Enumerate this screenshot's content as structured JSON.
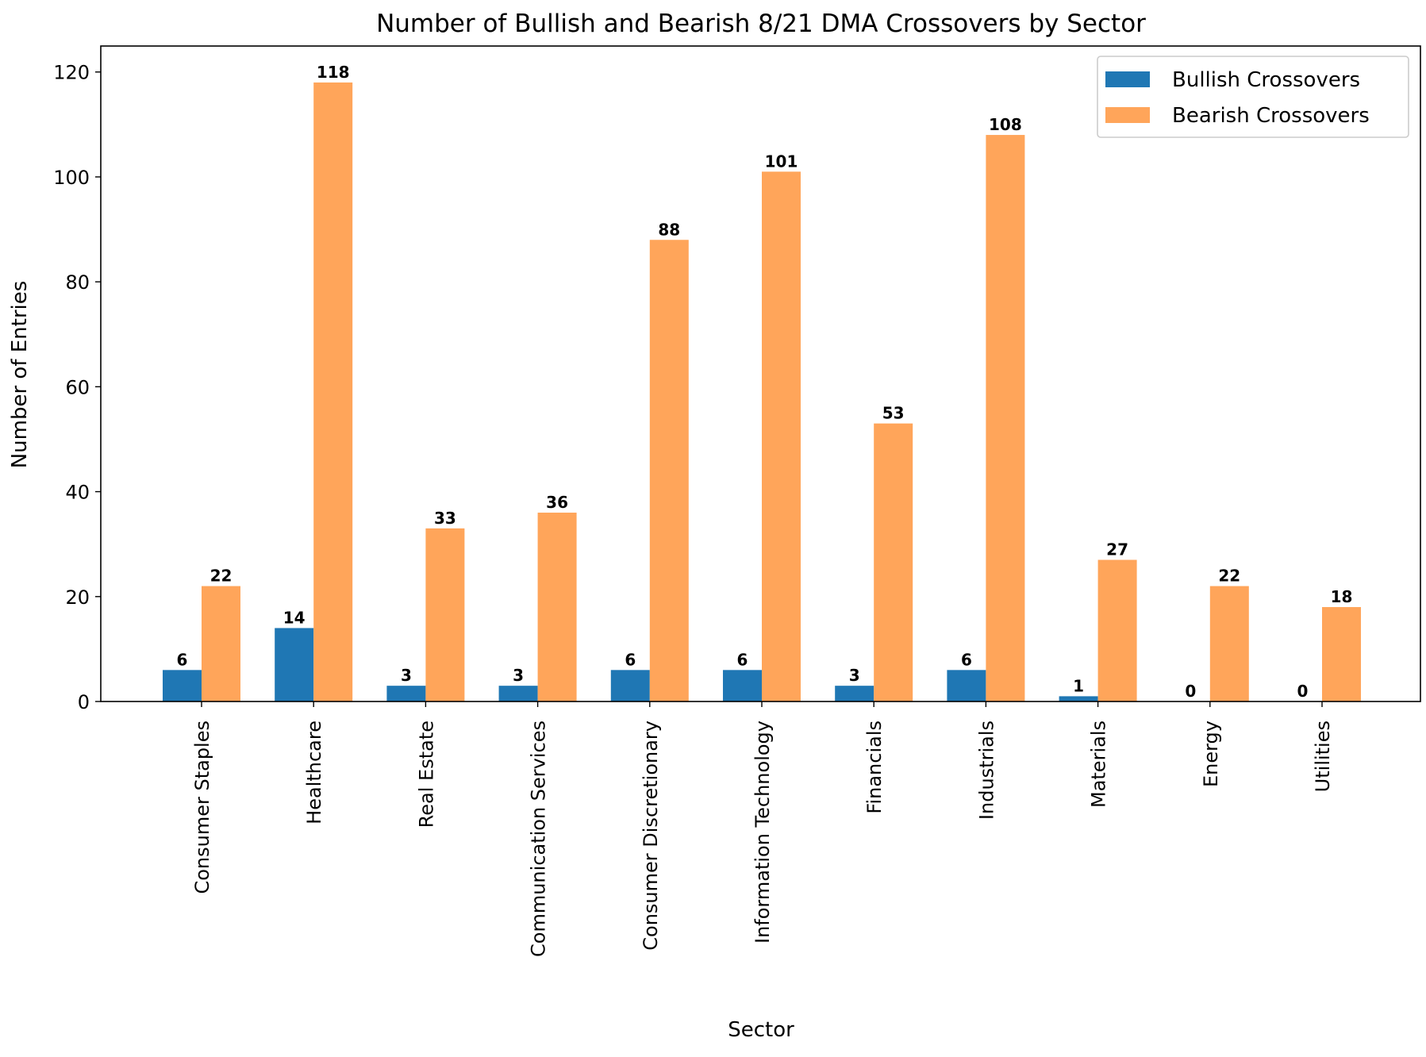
{
  "chart_data": {
    "type": "bar",
    "title": "Number of Bullish and Bearish 8/21 DMA Crossovers by Sector",
    "xlabel": "Sector",
    "ylabel": "Number of Entries",
    "categories": [
      "Consumer Staples",
      "Healthcare",
      "Real Estate",
      "Communication Services",
      "Consumer Discretionary",
      "Information Technology",
      "Financials",
      "Industrials",
      "Materials",
      "Energy",
      "Utilities"
    ],
    "series": [
      {
        "name": "Bullish Crossovers",
        "color": "#1f77b4",
        "values": [
          6,
          14,
          3,
          3,
          6,
          6,
          3,
          6,
          1,
          0,
          0
        ]
      },
      {
        "name": "Bearish Crossovers",
        "color": "#ffa55a",
        "values": [
          22,
          118,
          33,
          36,
          88,
          101,
          53,
          108,
          27,
          22,
          18
        ]
      }
    ],
    "ylim": [
      0,
      124.95
    ],
    "yticks": [
      0,
      20,
      40,
      60,
      80,
      100,
      120
    ],
    "grid": false,
    "legend_position": "top-right"
  }
}
